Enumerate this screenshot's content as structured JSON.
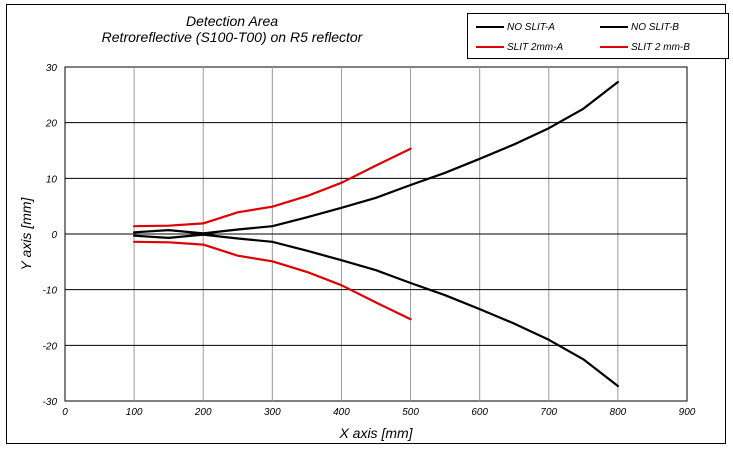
{
  "chart_data": {
    "type": "line",
    "title": "Detection Area",
    "subtitle": "Retroreflective (S100-T00) on R5 reflector",
    "xlabel": "X axis [mm]",
    "ylabel": "Y axis [mm]",
    "xlim": [
      0,
      900
    ],
    "ylim": [
      -30,
      30
    ],
    "xticks": [
      0,
      100,
      200,
      300,
      400,
      500,
      600,
      700,
      800,
      900
    ],
    "yticks": [
      -30,
      -20,
      -10,
      0,
      10,
      20,
      30
    ],
    "grid": true,
    "legend_position": "top-right",
    "series": [
      {
        "name": "NO SLIT-A",
        "color": "#000000",
        "x": [
          100,
          150,
          200,
          250,
          300,
          350,
          400,
          450,
          500,
          550,
          600,
          650,
          700,
          750,
          800
        ],
        "y": [
          0.3,
          0.7,
          0.1,
          0.8,
          1.4,
          3.0,
          4.7,
          6.5,
          8.8,
          11.0,
          13.5,
          16.1,
          19.0,
          22.5,
          27.3
        ]
      },
      {
        "name": "NO SLIT-B",
        "color": "#000000",
        "x": [
          100,
          150,
          200,
          250,
          300,
          350,
          400,
          450,
          500,
          550,
          600,
          650,
          700,
          750,
          800
        ],
        "y": [
          -0.3,
          -0.7,
          -0.1,
          -0.8,
          -1.4,
          -3.0,
          -4.7,
          -6.5,
          -8.8,
          -11.0,
          -13.5,
          -16.1,
          -19.0,
          -22.5,
          -27.3
        ]
      },
      {
        "name": "SLIT 2mm-A",
        "color": "#e00000",
        "x": [
          100,
          150,
          200,
          250,
          300,
          350,
          400,
          450,
          500
        ],
        "y": [
          1.4,
          1.5,
          1.9,
          3.9,
          4.9,
          6.8,
          9.2,
          12.3,
          15.3
        ]
      },
      {
        "name": "SLIT 2 mm-B",
        "color": "#e00000",
        "x": [
          100,
          150,
          200,
          250,
          300,
          350,
          400,
          450,
          500
        ],
        "y": [
          -1.4,
          -1.5,
          -1.9,
          -3.9,
          -4.9,
          -6.8,
          -9.2,
          -12.3,
          -15.3
        ]
      }
    ]
  }
}
